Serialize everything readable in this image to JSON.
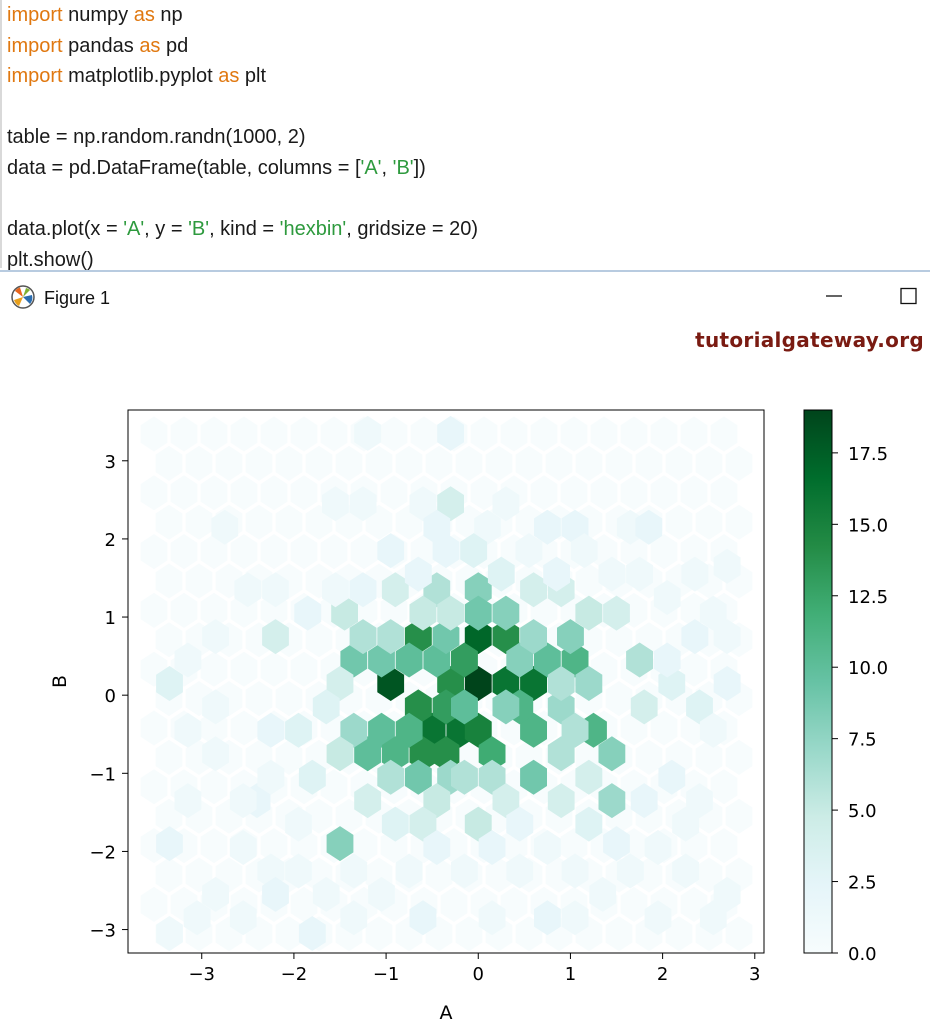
{
  "code": {
    "lines": [
      [
        {
          "t": "import",
          "c": "kw"
        },
        {
          "t": " numpy ",
          "c": ""
        },
        {
          "t": "as",
          "c": "kw"
        },
        {
          "t": " np",
          "c": ""
        }
      ],
      [
        {
          "t": "import",
          "c": "kw"
        },
        {
          "t": " pandas ",
          "c": ""
        },
        {
          "t": "as",
          "c": "kw"
        },
        {
          "t": " pd",
          "c": ""
        }
      ],
      [
        {
          "t": "import",
          "c": "kw"
        },
        {
          "t": " matplotlib.pyplot ",
          "c": ""
        },
        {
          "t": "as",
          "c": "kw"
        },
        {
          "t": " plt",
          "c": ""
        }
      ],
      [],
      [
        {
          "t": "table = np.random.randn(1000, 2)",
          "c": ""
        }
      ],
      [
        {
          "t": "data = pd.DataFrame(table, columns = [",
          "c": ""
        },
        {
          "t": "'A'",
          "c": "str"
        },
        {
          "t": ", ",
          "c": ""
        },
        {
          "t": "'B'",
          "c": "str"
        },
        {
          "t": "])",
          "c": ""
        }
      ],
      [],
      [
        {
          "t": "data.plot(x = ",
          "c": ""
        },
        {
          "t": "'A'",
          "c": "str"
        },
        {
          "t": ", y = ",
          "c": ""
        },
        {
          "t": "'B'",
          "c": "str"
        },
        {
          "t": ", kind = ",
          "c": ""
        },
        {
          "t": "'hexbin'",
          "c": "str"
        },
        {
          "t": ", gridsize = 20)",
          "c": ""
        }
      ],
      [
        {
          "t": "plt.show()",
          "c": ""
        }
      ]
    ]
  },
  "window": {
    "title": "Figure 1",
    "icon": "matplotlib-logo-icon",
    "minimize_icon": "minimize-icon",
    "maximize_icon": "maximize-icon"
  },
  "watermark": "tutorialgateway.org",
  "colors": {
    "keyword": "#e07810",
    "string": "#2e9a3e",
    "cmap_low": "#f7fcfd",
    "cmap_high": "#00441b"
  },
  "chart_data": {
    "type": "heatmap",
    "subtype": "hexbin",
    "colormap": "BuGn",
    "title": "",
    "xlabel": "A",
    "ylabel": "B",
    "xlim": [
      -3.8,
      3.1
    ],
    "ylim": [
      -3.3,
      3.65
    ],
    "xticks": [
      -3,
      -2,
      -1,
      0,
      1,
      2,
      3
    ],
    "xtick_labels": [
      "−3",
      "−2",
      "−1",
      "0",
      "1",
      "2",
      "3"
    ],
    "yticks": [
      -3,
      -2,
      -1,
      0,
      1,
      2,
      3
    ],
    "ytick_labels": [
      "−3",
      "−2",
      "−1",
      "0",
      "1",
      "2",
      "3"
    ],
    "colorbar": {
      "min": 0,
      "max": 19,
      "ticks": [
        0.0,
        2.5,
        5.0,
        7.5,
        10.0,
        12.5,
        15.0,
        17.5
      ],
      "tick_labels": [
        "0.0",
        "2.5",
        "5.0",
        "7.5",
        "10.0",
        "12.5",
        "15.0",
        "17.5"
      ]
    },
    "grid": false,
    "hex_cells": [
      {
        "x": 0.0,
        "y": 0.15,
        "count": 19
      },
      {
        "x": -0.95,
        "y": 0.15,
        "count": 18
      },
      {
        "x": 0.0,
        "y": 0.75,
        "count": 17
      },
      {
        "x": -0.2,
        "y": -0.45,
        "count": 16
      },
      {
        "x": -0.5,
        "y": -0.45,
        "count": 16
      },
      {
        "x": 0.3,
        "y": 0.15,
        "count": 16
      },
      {
        "x": 0.6,
        "y": 0.15,
        "count": 16
      },
      {
        "x": 0.0,
        "y": -0.45,
        "count": 15
      },
      {
        "x": -0.6,
        "y": -0.75,
        "count": 14
      },
      {
        "x": -0.35,
        "y": -0.75,
        "count": 14
      },
      {
        "x": -0.65,
        "y": -0.15,
        "count": 14
      },
      {
        "x": -0.3,
        "y": 0.15,
        "count": 14
      },
      {
        "x": 0.3,
        "y": 0.75,
        "count": 14
      },
      {
        "x": -0.65,
        "y": 0.75,
        "count": 14
      },
      {
        "x": -0.15,
        "y": 0.45,
        "count": 13
      },
      {
        "x": -0.35,
        "y": -0.15,
        "count": 13
      },
      {
        "x": 0.15,
        "y": -0.75,
        "count": 12
      },
      {
        "x": 0.6,
        "y": -0.45,
        "count": 11
      },
      {
        "x": 1.05,
        "y": 0.45,
        "count": 11
      },
      {
        "x": -0.15,
        "y": -0.15,
        "count": 10
      },
      {
        "x": -0.45,
        "y": 0.45,
        "count": 10
      },
      {
        "x": 0.75,
        "y": 0.45,
        "count": 10
      },
      {
        "x": -0.75,
        "y": 0.45,
        "count": 10
      },
      {
        "x": -1.05,
        "y": -0.45,
        "count": 10
      },
      {
        "x": -1.05,
        "y": 0.45,
        "count": 9
      },
      {
        "x": 1.25,
        "y": -0.45,
        "count": 11
      },
      {
        "x": -1.2,
        "y": -0.75,
        "count": 10
      },
      {
        "x": -0.65,
        "y": -1.05,
        "count": 9
      },
      {
        "x": -0.75,
        "y": -0.45,
        "count": 11
      },
      {
        "x": 0.45,
        "y": -0.15,
        "count": 11
      },
      {
        "x": 0.6,
        "y": -1.05,
        "count": 9
      },
      {
        "x": 0.0,
        "y": 1.35,
        "count": 8
      },
      {
        "x": 0.45,
        "y": 0.45,
        "count": 8
      },
      {
        "x": -0.9,
        "y": -0.75,
        "count": 11
      },
      {
        "x": 1.0,
        "y": 0.75,
        "count": 8
      },
      {
        "x": 0.3,
        "y": 1.05,
        "count": 8
      },
      {
        "x": 0.0,
        "y": 1.05,
        "count": 9
      },
      {
        "x": -0.35,
        "y": 0.75,
        "count": 9
      },
      {
        "x": -1.35,
        "y": 0.45,
        "count": 9
      },
      {
        "x": 1.45,
        "y": -0.75,
        "count": 8
      },
      {
        "x": 1.45,
        "y": -1.35,
        "count": 7
      },
      {
        "x": -1.5,
        "y": -1.9,
        "count": 8
      },
      {
        "x": 0.3,
        "y": -0.15,
        "count": 8
      },
      {
        "x": 0.9,
        "y": -0.15,
        "count": 7
      },
      {
        "x": 1.2,
        "y": 0.15,
        "count": 7
      },
      {
        "x": -1.35,
        "y": -0.45,
        "count": 7
      },
      {
        "x": -0.3,
        "y": -1.05,
        "count": 7
      },
      {
        "x": 0.9,
        "y": 0.15,
        "count": 6
      },
      {
        "x": 1.75,
        "y": 0.45,
        "count": 6
      },
      {
        "x": -0.45,
        "y": 1.35,
        "count": 6
      },
      {
        "x": -0.95,
        "y": 0.75,
        "count": 6
      },
      {
        "x": -1.25,
        "y": 0.75,
        "count": 6
      },
      {
        "x": 0.9,
        "y": -0.75,
        "count": 6
      },
      {
        "x": 1.05,
        "y": -0.45,
        "count": 6
      },
      {
        "x": 0.6,
        "y": 0.75,
        "count": 7
      },
      {
        "x": -1.45,
        "y": 1.05,
        "count": 5
      },
      {
        "x": -0.95,
        "y": -1.05,
        "count": 6
      },
      {
        "x": 0.15,
        "y": -1.05,
        "count": 6
      },
      {
        "x": -0.15,
        "y": -1.05,
        "count": 6
      },
      {
        "x": -0.45,
        "y": -1.35,
        "count": 5
      },
      {
        "x": 0.0,
        "y": -1.65,
        "count": 5
      },
      {
        "x": -0.6,
        "y": -1.65,
        "count": 4
      },
      {
        "x": -2.2,
        "y": 0.75,
        "count": 4
      },
      {
        "x": -3.35,
        "y": 0.15,
        "count": 3
      },
      {
        "x": -3.35,
        "y": -1.9,
        "count": 2
      },
      {
        "x": 1.5,
        "y": 1.05,
        "count": 4
      },
      {
        "x": 1.2,
        "y": 1.05,
        "count": 5
      },
      {
        "x": 0.6,
        "y": 1.35,
        "count": 4
      },
      {
        "x": 0.9,
        "y": 1.35,
        "count": 4
      },
      {
        "x": -0.3,
        "y": 1.05,
        "count": 5
      },
      {
        "x": -0.6,
        "y": 1.05,
        "count": 5
      },
      {
        "x": -0.9,
        "y": 1.35,
        "count": 4
      },
      {
        "x": -1.5,
        "y": 0.15,
        "count": 4
      },
      {
        "x": -1.65,
        "y": -0.15,
        "count": 3
      },
      {
        "x": -1.95,
        "y": -0.45,
        "count": 3
      },
      {
        "x": -2.25,
        "y": -0.45,
        "count": 2
      },
      {
        "x": -2.4,
        "y": -1.35,
        "count": 2
      },
      {
        "x": -1.5,
        "y": -0.75,
        "count": 5
      },
      {
        "x": -1.8,
        "y": -1.05,
        "count": 3
      },
      {
        "x": -1.2,
        "y": -1.35,
        "count": 4
      },
      {
        "x": -0.9,
        "y": -1.65,
        "count": 3
      },
      {
        "x": 0.3,
        "y": -1.35,
        "count": 4
      },
      {
        "x": 0.9,
        "y": -1.35,
        "count": 4
      },
      {
        "x": 1.2,
        "y": -1.05,
        "count": 4
      },
      {
        "x": 1.2,
        "y": -1.65,
        "count": 3
      },
      {
        "x": 1.5,
        "y": -1.9,
        "count": 2
      },
      {
        "x": 1.8,
        "y": -0.15,
        "count": 4
      },
      {
        "x": 1.8,
        "y": -1.35,
        "count": 2
      },
      {
        "x": 2.1,
        "y": -1.05,
        "count": 2
      },
      {
        "x": 2.1,
        "y": 0.15,
        "count": 3
      },
      {
        "x": 2.4,
        "y": -0.15,
        "count": 3
      },
      {
        "x": 2.7,
        "y": 0.15,
        "count": 2
      },
      {
        "x": 2.7,
        "y": 0.75,
        "count": 1
      },
      {
        "x": 2.4,
        "y": -1.35,
        "count": 1
      },
      {
        "x": 2.7,
        "y": 1.65,
        "count": 1
      },
      {
        "x": 2.7,
        "y": -2.55,
        "count": 1
      },
      {
        "x": -0.3,
        "y": 3.35,
        "count": 2
      },
      {
        "x": -1.2,
        "y": 3.35,
        "count": 1
      },
      {
        "x": -0.3,
        "y": 2.45,
        "count": 4
      },
      {
        "x": -0.6,
        "y": 2.45,
        "count": 1
      },
      {
        "x": -1.25,
        "y": 2.45,
        "count": 1
      },
      {
        "x": -1.55,
        "y": 2.45,
        "count": 1
      },
      {
        "x": -0.45,
        "y": 2.15,
        "count": 2
      },
      {
        "x": 0.1,
        "y": 2.15,
        "count": 1
      },
      {
        "x": 0.3,
        "y": 2.45,
        "count": 1
      },
      {
        "x": 0.75,
        "y": 2.15,
        "count": 2
      },
      {
        "x": 1.05,
        "y": 2.15,
        "count": 2
      },
      {
        "x": 1.65,
        "y": 2.15,
        "count": 1
      },
      {
        "x": 1.85,
        "y": 2.15,
        "count": 2
      },
      {
        "x": -2.75,
        "y": 2.15,
        "count": 1
      },
      {
        "x": -2.5,
        "y": 1.35,
        "count": 1
      },
      {
        "x": -2.2,
        "y": 1.35,
        "count": 1
      },
      {
        "x": -1.85,
        "y": 1.05,
        "count": 2
      },
      {
        "x": -1.55,
        "y": 1.35,
        "count": 1
      },
      {
        "x": -1.25,
        "y": 1.35,
        "count": 2
      },
      {
        "x": -0.95,
        "y": 1.85,
        "count": 2
      },
      {
        "x": -0.65,
        "y": 1.55,
        "count": 2
      },
      {
        "x": -0.35,
        "y": 1.85,
        "count": 2
      },
      {
        "x": -0.05,
        "y": 1.85,
        "count": 3
      },
      {
        "x": 0.25,
        "y": 1.55,
        "count": 3
      },
      {
        "x": 0.55,
        "y": 1.85,
        "count": 1
      },
      {
        "x": 0.85,
        "y": 1.55,
        "count": 2
      },
      {
        "x": 1.15,
        "y": 1.85,
        "count": 1
      },
      {
        "x": 1.45,
        "y": 1.55,
        "count": 1
      },
      {
        "x": 1.75,
        "y": 1.55,
        "count": 1
      },
      {
        "x": 2.05,
        "y": 1.25,
        "count": 1
      },
      {
        "x": 2.35,
        "y": 1.55,
        "count": 1
      },
      {
        "x": 2.35,
        "y": 0.75,
        "count": 2
      },
      {
        "x": 2.05,
        "y": 0.45,
        "count": 2
      },
      {
        "x": -2.85,
        "y": 0.75,
        "count": 1
      },
      {
        "x": -3.15,
        "y": 0.45,
        "count": 1
      },
      {
        "x": -2.85,
        "y": -0.15,
        "count": 1
      },
      {
        "x": -3.15,
        "y": -0.45,
        "count": 1
      },
      {
        "x": -2.85,
        "y": -0.75,
        "count": 1
      },
      {
        "x": -3.15,
        "y": -1.35,
        "count": 1
      },
      {
        "x": -2.55,
        "y": -1.35,
        "count": 1
      },
      {
        "x": -2.25,
        "y": -1.05,
        "count": 1
      },
      {
        "x": -2.55,
        "y": -1.95,
        "count": 1
      },
      {
        "x": -2.25,
        "y": -2.25,
        "count": 1
      },
      {
        "x": -2.85,
        "y": -2.55,
        "count": 1
      },
      {
        "x": -2.55,
        "y": -2.85,
        "count": 1
      },
      {
        "x": -1.95,
        "y": -1.65,
        "count": 1
      },
      {
        "x": -1.95,
        "y": -2.25,
        "count": 1
      },
      {
        "x": -1.65,
        "y": -2.55,
        "count": 1
      },
      {
        "x": -1.35,
        "y": -2.25,
        "count": 1
      },
      {
        "x": -1.05,
        "y": -2.55,
        "count": 1
      },
      {
        "x": -0.75,
        "y": -2.25,
        "count": 1
      },
      {
        "x": -0.6,
        "y": -2.85,
        "count": 2
      },
      {
        "x": -0.45,
        "y": -1.95,
        "count": 2
      },
      {
        "x": -0.15,
        "y": -2.25,
        "count": 1
      },
      {
        "x": 0.15,
        "y": -1.95,
        "count": 2
      },
      {
        "x": 0.45,
        "y": -2.25,
        "count": 1
      },
      {
        "x": 0.45,
        "y": -1.65,
        "count": 2
      },
      {
        "x": 0.75,
        "y": -1.95,
        "count": 1
      },
      {
        "x": 1.05,
        "y": -2.25,
        "count": 1
      },
      {
        "x": 1.35,
        "y": -2.55,
        "count": 1
      },
      {
        "x": 1.65,
        "y": -2.25,
        "count": 1
      },
      {
        "x": 1.95,
        "y": -1.95,
        "count": 1
      },
      {
        "x": 2.25,
        "y": -1.65,
        "count": 1
      },
      {
        "x": 2.25,
        "y": -2.25,
        "count": 1
      },
      {
        "x": 1.95,
        "y": -2.85,
        "count": 1
      },
      {
        "x": 1.05,
        "y": -2.85,
        "count": 1
      },
      {
        "x": 0.75,
        "y": -2.85,
        "count": 2
      },
      {
        "x": 0.15,
        "y": -2.85,
        "count": 1
      },
      {
        "x": -1.35,
        "y": -2.85,
        "count": 1
      },
      {
        "x": -1.8,
        "y": -3.05,
        "count": 2
      },
      {
        "x": -2.2,
        "y": -2.55,
        "count": 2
      },
      {
        "x": -3.05,
        "y": -2.85,
        "count": 1
      },
      {
        "x": -3.35,
        "y": -3.05,
        "count": 1
      },
      {
        "x": 2.55,
        "y": -2.85,
        "count": 1
      },
      {
        "x": 2.55,
        "y": -0.45,
        "count": 1
      },
      {
        "x": 2.55,
        "y": 1.05,
        "count": 1
      }
    ]
  }
}
